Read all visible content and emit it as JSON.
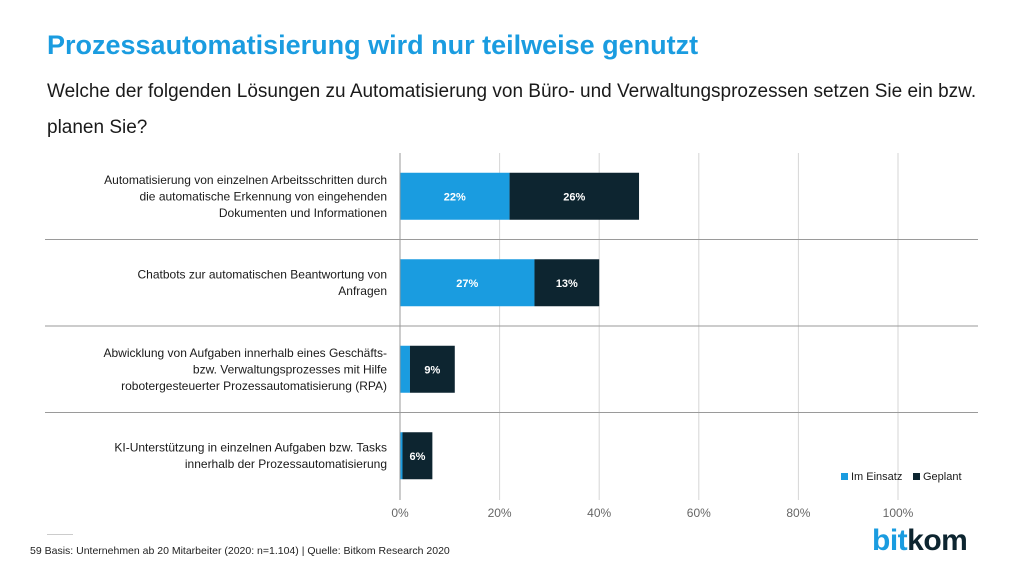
{
  "header": {
    "title": "Prozessautomatisierung wird nur teilweise genutzt",
    "subtitle": "Welche der folgenden Lösungen zu Automatisierung von Büro- und Verwaltungsprozessen setzen Sie ein bzw. planen Sie?"
  },
  "footer": {
    "page_number": "59",
    "source": "Basis: Unternehmen ab 20 Mitarbeiter (2020: n=1.104) | Quelle: Bitkom Research 2020"
  },
  "logo": {
    "part1": "bit",
    "part2": "kom"
  },
  "colors": {
    "im_einsatz": "#1a9ce0",
    "geplant": "#0d2530",
    "grid": "#d6d6d6",
    "divider": "#9a9a9a"
  },
  "chart_data": {
    "type": "bar",
    "orientation": "horizontal",
    "stacked": true,
    "categories": [
      "Automatisierung von einzelnen Arbeitsschritten durch die automatische Erkennung von eingehenden Dokumenten und Informationen",
      "Chatbots zur automatischen Beantwortung von Anfragen",
      "Abwicklung von Aufgaben innerhalb eines Geschäfts- bzw. Verwaltungsprozesses mit Hilfe robotergesteuerter Prozessautomatisierung (RPA)",
      "KI-Unterstützung in einzelnen Aufgaben bzw. Tasks innerhalb der Prozessautomatisierung"
    ],
    "category_lines": [
      [
        "Automatisierung von einzelnen Arbeitsschritten durch",
        "die automatische Erkennung von eingehenden",
        "Dokumenten und Informationen"
      ],
      [
        "Chatbots zur automatischen Beantwortung von",
        "Anfragen"
      ],
      [
        "Abwicklung von Aufgaben innerhalb eines Geschäfts-",
        "bzw. Verwaltungsprozesses mit Hilfe",
        "robotergesteuerter Prozessautomatisierung (RPA)"
      ],
      [
        "KI-Unterstützung in einzelnen Aufgaben bzw. Tasks",
        "innerhalb der Prozessautomatisierung"
      ]
    ],
    "series": [
      {
        "name": "Im Einsatz",
        "values": [
          22,
          27,
          2,
          0.5
        ],
        "labels": [
          "22%",
          "27%",
          "",
          ""
        ]
      },
      {
        "name": "Geplant",
        "values": [
          26,
          13,
          9,
          6
        ],
        "labels": [
          "26%",
          "13%",
          "9%",
          "6%"
        ]
      }
    ],
    "xlim": [
      0,
      100
    ],
    "xticks": [
      0,
      20,
      40,
      60,
      80,
      100
    ],
    "xtick_labels": [
      "0%",
      "20%",
      "40%",
      "60%",
      "80%",
      "100%"
    ],
    "unit": "%",
    "grid": true,
    "legend_position": "bottom-right"
  }
}
